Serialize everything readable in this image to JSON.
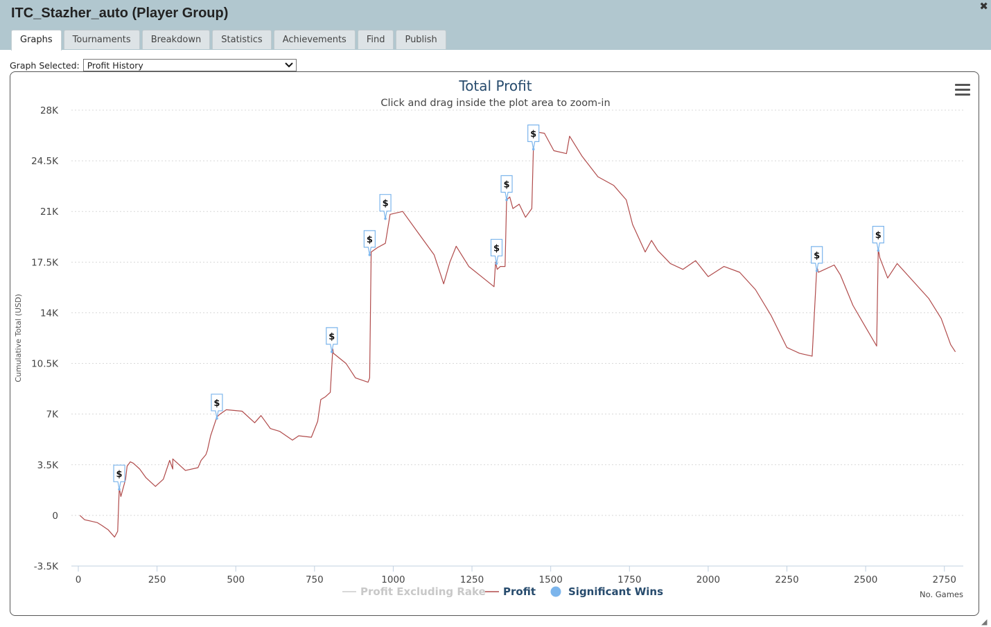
{
  "window": {
    "title": "ITC_Stazher_auto (Player Group)",
    "close_icon": "close-icon"
  },
  "tabs": [
    "Graphs",
    "Tournaments",
    "Breakdown",
    "Statistics",
    "Achievements",
    "Find",
    "Publish"
  ],
  "active_tab": "Graphs",
  "graph_select": {
    "label": "Graph Selected:",
    "value": "Profit History"
  },
  "colors": {
    "header": "#b1c7cf",
    "profit": "#b04a4a",
    "significant": "#7cb5ec",
    "excl_rake": "#cccccc",
    "title": "#274b6d"
  },
  "chart_data": {
    "type": "line",
    "title": "Total Profit",
    "subtitle": "Click and drag inside the plot area to zoom-in",
    "xlabel": "No. Games",
    "ylabel": "Cumulative Total (USD)",
    "xlim": [
      0,
      2800
    ],
    "ylim": [
      -3500,
      28000
    ],
    "x_ticks": [
      0,
      250,
      500,
      750,
      1000,
      1250,
      1500,
      1750,
      2000,
      2250,
      2500,
      2750
    ],
    "x_tick_labels": [
      "0",
      "250",
      "500",
      "750",
      "1000",
      "1250",
      "1500",
      "1750",
      "2000",
      "2250",
      "2500",
      "2750"
    ],
    "y_ticks": [
      -3500,
      0,
      3500,
      7000,
      10500,
      14000,
      17500,
      21000,
      24500,
      28000
    ],
    "y_tick_labels": [
      "-3.5K",
      "0",
      "3.5K",
      "7K",
      "10.5K",
      "14K",
      "17.5K",
      "21K",
      "24.5K",
      "28K"
    ],
    "grid": true,
    "legend": [
      "Profit Excluding Rake",
      "Profit",
      "Significant Wins"
    ],
    "legend_placement": "bottom",
    "series": [
      {
        "name": "Profit",
        "x": [
          5,
          20,
          40,
          60,
          75,
          95,
          115,
          125,
          130,
          135,
          150,
          155,
          165,
          175,
          195,
          215,
          245,
          270,
          290,
          300,
          300,
          340,
          380,
          390,
          405,
          410,
          420,
          440,
          450,
          470,
          520,
          560,
          580,
          610,
          640,
          680,
          700,
          740,
          760,
          770,
          785,
          800,
          808,
          810,
          850,
          880,
          920,
          925,
          930,
          950,
          975,
          990,
          1030,
          1080,
          1130,
          1160,
          1180,
          1200,
          1240,
          1280,
          1320,
          1325,
          1330,
          1340,
          1355,
          1360,
          1370,
          1380,
          1400,
          1420,
          1440,
          1445,
          1450,
          1480,
          1510,
          1550,
          1560,
          1600,
          1650,
          1700,
          1740,
          1760,
          1800,
          1820,
          1840,
          1880,
          1920,
          1960,
          2000,
          2050,
          2100,
          2150,
          2200,
          2250,
          2290,
          2330,
          2345,
          2350,
          2360,
          2400,
          2420,
          2460,
          2500,
          2535,
          2540,
          2545,
          2570,
          2600,
          2650,
          2700,
          2740,
          2770,
          2785
        ],
        "y": [
          0,
          -300,
          -400,
          -500,
          -700,
          -1000,
          -1500,
          -1100,
          1900,
          1300,
          2500,
          3400,
          3700,
          3600,
          3200,
          2600,
          2000,
          2500,
          3800,
          3200,
          3900,
          3100,
          3300,
          3800,
          4200,
          4500,
          5500,
          6800,
          7000,
          7300,
          7200,
          6400,
          6900,
          6000,
          5800,
          5200,
          5500,
          5400,
          6500,
          8000,
          8200,
          8500,
          11500,
          11200,
          10500,
          9500,
          9200,
          9500,
          18200,
          18500,
          18800,
          20800,
          21000,
          19500,
          18000,
          16000,
          17500,
          18600,
          17200,
          16500,
          15800,
          17500,
          17000,
          17200,
          17200,
          21800,
          22000,
          21200,
          21500,
          20600,
          21200,
          25400,
          26500,
          26400,
          25200,
          25000,
          26200,
          24800,
          23400,
          22800,
          21800,
          20100,
          18200,
          19000,
          18300,
          17400,
          17000,
          17600,
          16500,
          17200,
          16800,
          15600,
          13800,
          11600,
          11200,
          11000,
          17200,
          16800,
          16900,
          17300,
          16600,
          14500,
          13000,
          11700,
          18400,
          17800,
          16400,
          17400,
          16200,
          15000,
          13600,
          11800,
          11300
        ]
      }
    ],
    "significant_wins": [
      {
        "x": 130,
        "y": 1800,
        "label": "$"
      },
      {
        "x": 440,
        "y": 6700,
        "label": "$"
      },
      {
        "x": 805,
        "y": 11300,
        "label": "$"
      },
      {
        "x": 925,
        "y": 18000,
        "label": "$"
      },
      {
        "x": 975,
        "y": 20500,
        "label": "$"
      },
      {
        "x": 1328,
        "y": 17400,
        "label": "$"
      },
      {
        "x": 1360,
        "y": 21800,
        "label": "$"
      },
      {
        "x": 1445,
        "y": 25300,
        "label": "$"
      },
      {
        "x": 2345,
        "y": 16900,
        "label": "$"
      },
      {
        "x": 2540,
        "y": 18300,
        "label": "$"
      }
    ]
  }
}
